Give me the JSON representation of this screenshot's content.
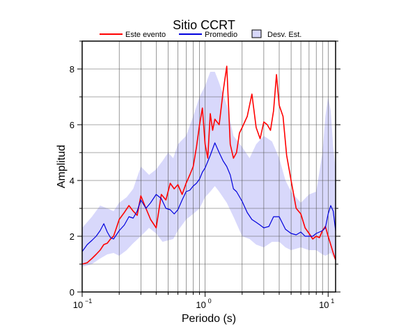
{
  "chart_data": {
    "type": "line",
    "title": "Sitio CCRT",
    "xlabel": "Periodo (s)",
    "ylabel": "Amplitud",
    "x_scale": "log",
    "xlim": [
      0.1,
      11.5
    ],
    "ylim": [
      0,
      9
    ],
    "grid": true,
    "legend_position": "top",
    "x_ticks": [
      {
        "base": "10",
        "exp": "−1"
      },
      {
        "base": "10",
        "exp": "0"
      },
      {
        "base": "10",
        "exp": "1"
      }
    ],
    "y_ticks": [
      "0",
      "2",
      "4",
      "6",
      "8"
    ],
    "colors": {
      "este_evento": "#ff0000",
      "promedio": "#0000dd",
      "desv_band": "#d8d8fb"
    },
    "series": [
      {
        "name": "Este evento",
        "x": [
          0.1,
          0.11,
          0.12,
          0.13,
          0.14,
          0.15,
          0.16,
          0.17,
          0.18,
          0.19,
          0.2,
          0.22,
          0.24,
          0.26,
          0.28,
          0.3,
          0.33,
          0.36,
          0.4,
          0.44,
          0.48,
          0.52,
          0.56,
          0.6,
          0.65,
          0.7,
          0.75,
          0.8,
          0.85,
          0.9,
          0.95,
          1.0,
          1.05,
          1.1,
          1.15,
          1.2,
          1.3,
          1.4,
          1.5,
          1.6,
          1.7,
          1.8,
          1.9,
          2.0,
          2.2,
          2.4,
          2.6,
          2.8,
          3.0,
          3.2,
          3.4,
          3.6,
          3.8,
          4.0,
          4.3,
          4.6,
          5.0,
          5.5,
          6.0,
          6.5,
          7.0,
          7.5,
          8.0,
          8.5,
          9.0,
          9.5,
          10.0,
          10.5,
          11.0,
          11.5
        ],
        "values": [
          1.0,
          1.05,
          1.2,
          1.35,
          1.5,
          1.7,
          1.75,
          1.9,
          2.0,
          2.3,
          2.6,
          2.85,
          3.1,
          2.9,
          2.75,
          3.45,
          3.0,
          2.6,
          2.3,
          3.5,
          3.3,
          3.9,
          3.7,
          3.85,
          3.5,
          3.9,
          4.2,
          4.5,
          5.2,
          6.0,
          6.6,
          5.3,
          4.8,
          6.4,
          5.8,
          6.2,
          6.0,
          7.2,
          8.1,
          5.3,
          4.8,
          5.0,
          5.7,
          5.9,
          6.3,
          7.1,
          5.9,
          5.5,
          6.1,
          6.0,
          5.8,
          6.5,
          7.8,
          6.7,
          6.3,
          4.9,
          4.0,
          3.0,
          2.8,
          2.3,
          2.1,
          1.9,
          2.0,
          1.95,
          2.2,
          2.35,
          2.0,
          1.7,
          1.4,
          1.15
        ]
      },
      {
        "name": "Promedio",
        "x": [
          0.1,
          0.11,
          0.12,
          0.13,
          0.14,
          0.15,
          0.16,
          0.17,
          0.18,
          0.2,
          0.22,
          0.24,
          0.26,
          0.28,
          0.3,
          0.33,
          0.36,
          0.4,
          0.44,
          0.48,
          0.52,
          0.56,
          0.6,
          0.65,
          0.7,
          0.75,
          0.8,
          0.85,
          0.9,
          0.95,
          1.0,
          1.1,
          1.2,
          1.3,
          1.4,
          1.5,
          1.6,
          1.7,
          1.8,
          2.0,
          2.2,
          2.4,
          2.6,
          2.8,
          3.0,
          3.3,
          3.6,
          4.0,
          4.5,
          5.0,
          5.5,
          6.0,
          6.5,
          7.0,
          7.5,
          8.0,
          8.5,
          9.0,
          9.5,
          10.0,
          10.5,
          11.0,
          11.5
        ],
        "values": [
          1.45,
          1.7,
          1.85,
          2.0,
          2.2,
          2.45,
          2.15,
          1.95,
          1.9,
          2.2,
          2.4,
          2.7,
          2.65,
          2.9,
          3.3,
          3.0,
          3.2,
          3.5,
          3.35,
          3.0,
          2.95,
          2.8,
          2.95,
          3.3,
          3.6,
          3.65,
          3.8,
          3.9,
          4.05,
          4.3,
          4.45,
          4.9,
          5.35,
          5.0,
          4.7,
          4.5,
          4.2,
          3.7,
          3.6,
          3.25,
          2.85,
          2.6,
          2.5,
          2.4,
          2.3,
          2.35,
          2.7,
          2.7,
          2.25,
          2.1,
          2.05,
          2.15,
          2.0,
          2.0,
          2.0,
          2.1,
          2.15,
          2.2,
          2.3,
          2.8,
          3.1,
          2.9,
          2.2
        ]
      }
    ],
    "band": {
      "name": "Desv. Est.",
      "x": [
        0.1,
        0.12,
        0.14,
        0.16,
        0.18,
        0.2,
        0.23,
        0.26,
        0.3,
        0.35,
        0.4,
        0.45,
        0.5,
        0.55,
        0.6,
        0.7,
        0.8,
        0.9,
        1.0,
        1.1,
        1.2,
        1.3,
        1.5,
        1.7,
        2.0,
        2.3,
        2.6,
        3.0,
        3.5,
        4.0,
        4.5,
        5.0,
        6.0,
        7.0,
        8.0,
        9.0,
        9.5,
        10.0,
        10.5,
        11.0,
        11.5
      ],
      "upper": [
        2.3,
        2.7,
        3.1,
        3.0,
        2.9,
        3.2,
        3.4,
        3.7,
        4.5,
        4.2,
        4.4,
        4.7,
        5.0,
        4.8,
        5.3,
        5.6,
        6.3,
        7.0,
        7.4,
        7.9,
        7.9,
        7.5,
        6.7,
        5.6,
        5.2,
        4.8,
        5.3,
        5.6,
        5.4,
        4.8,
        4.0,
        3.6,
        3.2,
        3.5,
        3.6,
        5.0,
        6.3,
        7.0,
        6.5,
        5.2,
        4.4
      ],
      "lower": [
        0.9,
        1.0,
        1.2,
        1.35,
        1.4,
        1.3,
        1.5,
        1.75,
        2.0,
        2.3,
        2.1,
        1.8,
        1.85,
        1.9,
        2.2,
        2.6,
        2.8,
        3.0,
        3.4,
        3.6,
        3.8,
        3.6,
        3.2,
        2.7,
        2.0,
        1.9,
        1.7,
        1.6,
        1.8,
        1.8,
        1.6,
        1.5,
        1.6,
        1.5,
        1.5,
        1.35,
        1.3,
        1.35,
        1.4,
        1.25,
        1.15
      ]
    }
  }
}
